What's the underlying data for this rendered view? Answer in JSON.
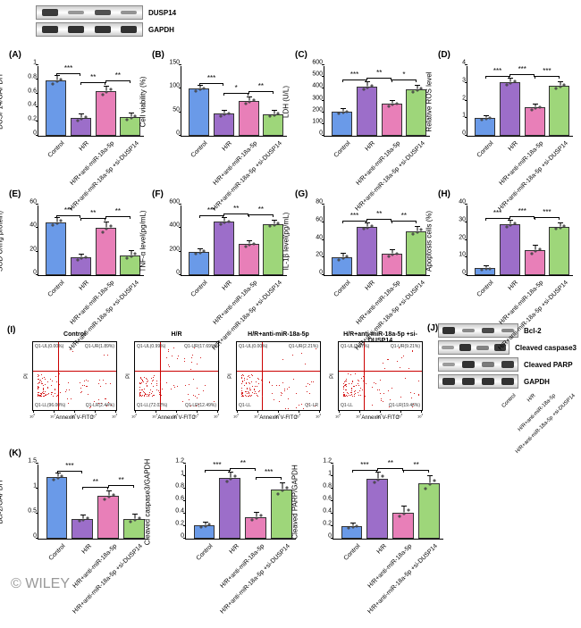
{
  "colors": {
    "control": "#6a9ae8",
    "hr": "#9c6ec9",
    "anti": "#e87fb8",
    "si": "#9ed67a",
    "flow_dots": "#d62020"
  },
  "x_labels": [
    "Control",
    "H/R",
    "H/R+anti-miR-18a-5p",
    "H/R+anti-miR-18a-5p\n+si-DUSP14"
  ],
  "blot_top": {
    "rows": [
      {
        "label": "DUSP14",
        "bands": [
          0.85,
          0.28,
          0.7,
          0.3
        ]
      },
      {
        "label": "GAPDH",
        "bands": [
          0.9,
          0.9,
          0.9,
          0.9
        ]
      }
    ]
  },
  "panels_row1": [
    {
      "letter": "(A)",
      "ylabel": "DUSP14/GAPDH",
      "ymax": 1.0,
      "yticks": [
        0.0,
        0.2,
        0.4,
        0.6,
        0.8,
        1.0
      ],
      "values": [
        0.78,
        0.25,
        0.63,
        0.27
      ],
      "err": [
        0.05,
        0.04,
        0.06,
        0.04
      ],
      "sig": [
        {
          "from": 0,
          "to": 1,
          "t": "***"
        },
        {
          "from": 1,
          "to": 2,
          "t": "**"
        },
        {
          "from": 2,
          "to": 3,
          "t": "**"
        }
      ]
    },
    {
      "letter": "(B)",
      "ylabel": "Cell viability (%)",
      "ymax": 150,
      "yticks": [
        0,
        50,
        100,
        150
      ],
      "values": [
        100,
        47,
        74,
        46
      ],
      "err": [
        5,
        4,
        6,
        5
      ],
      "sig": [
        {
          "from": 0,
          "to": 1,
          "t": "***"
        },
        {
          "from": 1,
          "to": 2,
          "t": "*"
        },
        {
          "from": 2,
          "to": 3,
          "t": "**"
        }
      ]
    },
    {
      "letter": "(C)",
      "ylabel": "LDH (U/L)",
      "ymax": 600,
      "yticks": [
        0,
        100,
        200,
        300,
        400,
        500,
        600
      ],
      "values": [
        205,
        420,
        270,
        395
      ],
      "err": [
        15,
        25,
        18,
        22
      ],
      "sig": [
        {
          "from": 0,
          "to": 1,
          "t": "***"
        },
        {
          "from": 1,
          "to": 2,
          "t": "**"
        },
        {
          "from": 2,
          "to": 3,
          "t": "*"
        }
      ]
    },
    {
      "letter": "(D)",
      "ylabel": "Relative ROS level",
      "ymax": 4,
      "yticks": [
        0,
        1,
        2,
        3,
        4
      ],
      "values": [
        1.0,
        3.05,
        1.6,
        2.85
      ],
      "err": [
        0.08,
        0.15,
        0.12,
        0.15
      ],
      "sig": [
        {
          "from": 0,
          "to": 1,
          "t": "***"
        },
        {
          "from": 1,
          "to": 2,
          "t": "***"
        },
        {
          "from": 2,
          "to": 3,
          "t": "***"
        }
      ]
    }
  ],
  "panels_row2": [
    {
      "letter": "(E)",
      "ylabel": "SOD U/mg protein)",
      "ymax": 60,
      "yticks": [
        0,
        20,
        40,
        60
      ],
      "values": [
        45,
        15,
        40,
        17
      ],
      "err": [
        3,
        2,
        4,
        3
      ],
      "sig": [
        {
          "from": 0,
          "to": 1,
          "t": "***"
        },
        {
          "from": 1,
          "to": 2,
          "t": "**"
        },
        {
          "from": 2,
          "to": 3,
          "t": "**"
        }
      ]
    },
    {
      "letter": "(F)",
      "ylabel": "TNF-α level(pg/mL)",
      "ymax": 600,
      "yticks": [
        0,
        200,
        400,
        600
      ],
      "values": [
        200,
        455,
        265,
        435
      ],
      "err": [
        15,
        20,
        18,
        22
      ],
      "sig": [
        {
          "from": 0,
          "to": 1,
          "t": "***"
        },
        {
          "from": 1,
          "to": 2,
          "t": "**"
        },
        {
          "from": 2,
          "to": 3,
          "t": "**"
        }
      ]
    },
    {
      "letter": "(G)",
      "ylabel": "IL-1β level(pg/mL)",
      "ymax": 80,
      "yticks": [
        0,
        20,
        40,
        60,
        80
      ],
      "values": [
        20,
        55,
        24,
        50
      ],
      "err": [
        3,
        3,
        3,
        4
      ],
      "sig": [
        {
          "from": 0,
          "to": 1,
          "t": "***"
        },
        {
          "from": 1,
          "to": 2,
          "t": "**"
        },
        {
          "from": 2,
          "to": 3,
          "t": "**"
        }
      ]
    },
    {
      "letter": "(H)",
      "ylabel": "Apoptosis cells (%)",
      "ymax": 40,
      "yticks": [
        0,
        10,
        20,
        30,
        40
      ],
      "values": [
        4,
        29,
        14,
        27.5
      ],
      "err": [
        0.5,
        1.5,
        2,
        1.5
      ],
      "sig": [
        {
          "from": 0,
          "to": 1,
          "t": "***"
        },
        {
          "from": 1,
          "to": 2,
          "t": "***"
        },
        {
          "from": 2,
          "to": 3,
          "t": "***"
        }
      ]
    }
  ],
  "flow": {
    "letter": "(I)",
    "titles": [
      "Control",
      "H/R",
      "H/R+anti-miR-18a-5p",
      "H/R+anti-miR-18a-5p\n+si-DUSP14"
    ],
    "xlabel": "Annexin V-FITC",
    "ylabel": "PI",
    "quads": [
      {
        "ul": "Q1-UL(0.00%)",
        "ur": "Q1-UR(1.89%)",
        "ll": "Q1-LL(96.00%)",
        "lr": "Q1-LR(2.44%)",
        "ur_density": 0.08,
        "lr_density": 0.06
      },
      {
        "ul": "Q1-UL(0.99%)",
        "ur": "Q1-UR(17.69%)",
        "ll": "Q1-LL(72.02%)",
        "lr": "Q1-LR(12.49%)",
        "ur_density": 0.45,
        "lr_density": 0.35
      },
      {
        "ul": "Q1-UL(0.00%)",
        "ur": "Q1-UR(2.21%)",
        "ll": "Q1-LL",
        "lr": "Q1-LR",
        "ur_density": 0.12,
        "lr_density": 0.28
      },
      {
        "ul": "Q1-UL(1.07%)",
        "ur": "Q1-UR(9.21%)",
        "ll": "Q1-LL",
        "lr": "Q1-LR(19.46%)",
        "ur_density": 0.28,
        "lr_density": 0.45
      }
    ]
  },
  "blot_J": {
    "letter": "(J)",
    "rows": [
      {
        "label": "Bcl-2",
        "bands": [
          0.9,
          0.35,
          0.75,
          0.38
        ]
      },
      {
        "label": "Cleaved caspase3",
        "bands": [
          0.25,
          0.9,
          0.4,
          0.85
        ]
      },
      {
        "label": "Cleaved PARP",
        "bands": [
          0.25,
          0.9,
          0.45,
          0.85
        ]
      },
      {
        "label": "GAPDH",
        "bands": [
          0.9,
          0.9,
          0.9,
          0.9
        ]
      }
    ]
  },
  "panels_K": {
    "letter": "(K)",
    "charts": [
      {
        "ylabel": "Bcl-2/GAPDH",
        "ymax": 1.5,
        "yticks": [
          0.0,
          0.5,
          1.0,
          1.5
        ],
        "values": [
          1.23,
          0.4,
          0.85,
          0.4
        ],
        "err": [
          0.06,
          0.04,
          0.08,
          0.06
        ],
        "sig": [
          {
            "from": 0,
            "to": 1,
            "t": "***"
          },
          {
            "from": 1,
            "to": 2,
            "t": "**"
          },
          {
            "from": 2,
            "to": 3,
            "t": "**"
          }
        ]
      },
      {
        "ylabel": "Cleaved caspase3/GAPDH",
        "ymax": 1.2,
        "yticks": [
          0.0,
          0.2,
          0.4,
          0.6,
          0.8,
          1.0,
          1.2
        ],
        "values": [
          0.22,
          0.97,
          0.35,
          0.78
        ],
        "err": [
          0.03,
          0.08,
          0.05,
          0.09
        ],
        "sig": [
          {
            "from": 0,
            "to": 1,
            "t": "***"
          },
          {
            "from": 1,
            "to": 2,
            "t": "**"
          },
          {
            "from": 2,
            "to": 3,
            "t": "***"
          }
        ]
      },
      {
        "ylabel": "Cleaved PARP/GAPDH",
        "ymax": 1.2,
        "yticks": [
          0.0,
          0.2,
          0.4,
          0.6,
          0.8,
          1.0,
          1.2
        ],
        "values": [
          0.2,
          0.96,
          0.42,
          0.88
        ],
        "err": [
          0.03,
          0.08,
          0.08,
          0.1
        ],
        "sig": [
          {
            "from": 0,
            "to": 1,
            "t": "***"
          },
          {
            "from": 1,
            "to": 2,
            "t": "**"
          },
          {
            "from": 2,
            "to": 3,
            "t": "**"
          }
        ]
      }
    ]
  },
  "watermark": "© WILEY"
}
